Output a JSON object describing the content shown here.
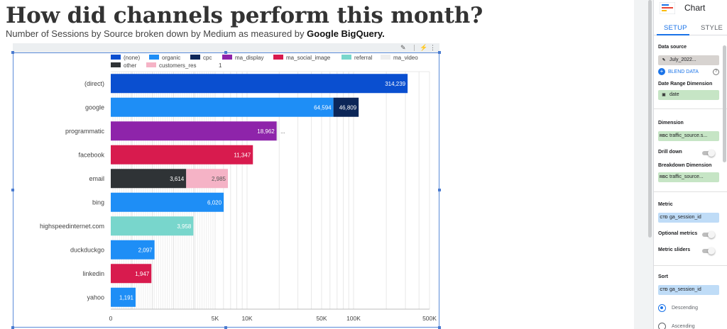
{
  "report": {
    "title": "How did channels perform this month?",
    "subtitle_prefix": "Number of Sessions by Source broken down by Medium as measured by ",
    "subtitle_emphasis": "Google BigQuery."
  },
  "chart_toolbar": {
    "icons": [
      "filter-reset-icon",
      "lightning-icon",
      "more-vert-icon"
    ]
  },
  "chart_data": {
    "type": "bar",
    "orientation": "horizontal",
    "stacked": true,
    "x_scale": "symlog",
    "x_ticks": [
      0,
      5000,
      10000,
      50000,
      100000,
      500000
    ],
    "x_tick_labels": [
      "0",
      "5K",
      "10K",
      "50K",
      "100K",
      "500K"
    ],
    "xlim": [
      0,
      500000
    ],
    "grid": true,
    "legend_position": "top",
    "legend": [
      {
        "name": "(none)",
        "color": "#0a4fd0"
      },
      {
        "name": "organic",
        "color": "#1e8ef6"
      },
      {
        "name": "cpc",
        "color": "#0c2658"
      },
      {
        "name": "ma_display",
        "color": "#8e24aa"
      },
      {
        "name": "ma_social_image",
        "color": "#d81b4e"
      },
      {
        "name": "referral",
        "color": "#78d6cc"
      },
      {
        "name": "ma_video",
        "color": "#eeeeee"
      },
      {
        "name": "other",
        "color": "#2f3336"
      },
      {
        "name": "customers_res",
        "color": "#f5b3c6"
      }
    ],
    "legend_page": "1",
    "categories": [
      "(direct)",
      "google",
      "programmatic",
      "facebook",
      "email",
      "bing",
      "highspeedinternet.com",
      "duckduckgo",
      "linkedin",
      "yahoo"
    ],
    "bars": [
      {
        "category": "(direct)",
        "segments": [
          {
            "series": "(none)",
            "value": 314239,
            "label": "314,239"
          }
        ]
      },
      {
        "category": "google",
        "segments": [
          {
            "series": "organic",
            "value": 64594,
            "label": "64,594"
          },
          {
            "series": "cpc",
            "value": 46809,
            "label": "46,809"
          }
        ]
      },
      {
        "category": "programmatic",
        "segments": [
          {
            "series": "ma_display",
            "value": 18962,
            "label": "18,962"
          },
          {
            "series": "ma_video",
            "value": 700,
            "label": "..."
          }
        ]
      },
      {
        "category": "facebook",
        "segments": [
          {
            "series": "ma_social_image",
            "value": 11347,
            "label": "11,347"
          }
        ]
      },
      {
        "category": "email",
        "segments": [
          {
            "series": "other",
            "value": 3614,
            "label": "3,614"
          },
          {
            "series": "customers_res",
            "value": 2985,
            "label": "2,985"
          }
        ]
      },
      {
        "category": "bing",
        "segments": [
          {
            "series": "organic",
            "value": 6020,
            "label": "6,020"
          }
        ]
      },
      {
        "category": "highspeedinternet.com",
        "segments": [
          {
            "series": "referral",
            "value": 3958,
            "label": "3,958"
          }
        ]
      },
      {
        "category": "duckduckgo",
        "segments": [
          {
            "series": "organic",
            "value": 2097,
            "label": "2,097"
          }
        ]
      },
      {
        "category": "linkedin",
        "segments": [
          {
            "series": "ma_social_image",
            "value": 1947,
            "label": "1,947"
          }
        ]
      },
      {
        "category": "yahoo",
        "segments": [
          {
            "series": "organic",
            "value": 1191,
            "label": "1,191"
          }
        ]
      }
    ]
  },
  "panel": {
    "chart_type": "Chart",
    "tabs": {
      "setup": "SETUP",
      "style": "STYLE"
    },
    "data_source_label": "Data source",
    "data_source_value": "July_2022...",
    "blend_label": "BLEND DATA",
    "help_icon": "?",
    "date_range_label": "Date Range Dimension",
    "date_range_value": "date",
    "dimension_label": "Dimension",
    "dimension_value": "traffic_source.s...",
    "dimension_type": "RBC",
    "drill_down_label": "Drill down",
    "breakdown_label": "Breakdown Dimension",
    "breakdown_value": "traffic_source...",
    "breakdown_type": "RBC",
    "metric_label": "Metric",
    "metric_value": "ga_session_id",
    "metric_type": "CTD",
    "optional_metrics_label": "Optional metrics",
    "metric_sliders_label": "Metric sliders",
    "sort_label": "Sort",
    "sort_value": "ga_session_id",
    "sort_type": "CTD",
    "sort_options": [
      "Descending",
      "Ascending"
    ]
  },
  "colors": {
    "accent": "#1a73e8",
    "selection_border": "#5b8bd8"
  }
}
